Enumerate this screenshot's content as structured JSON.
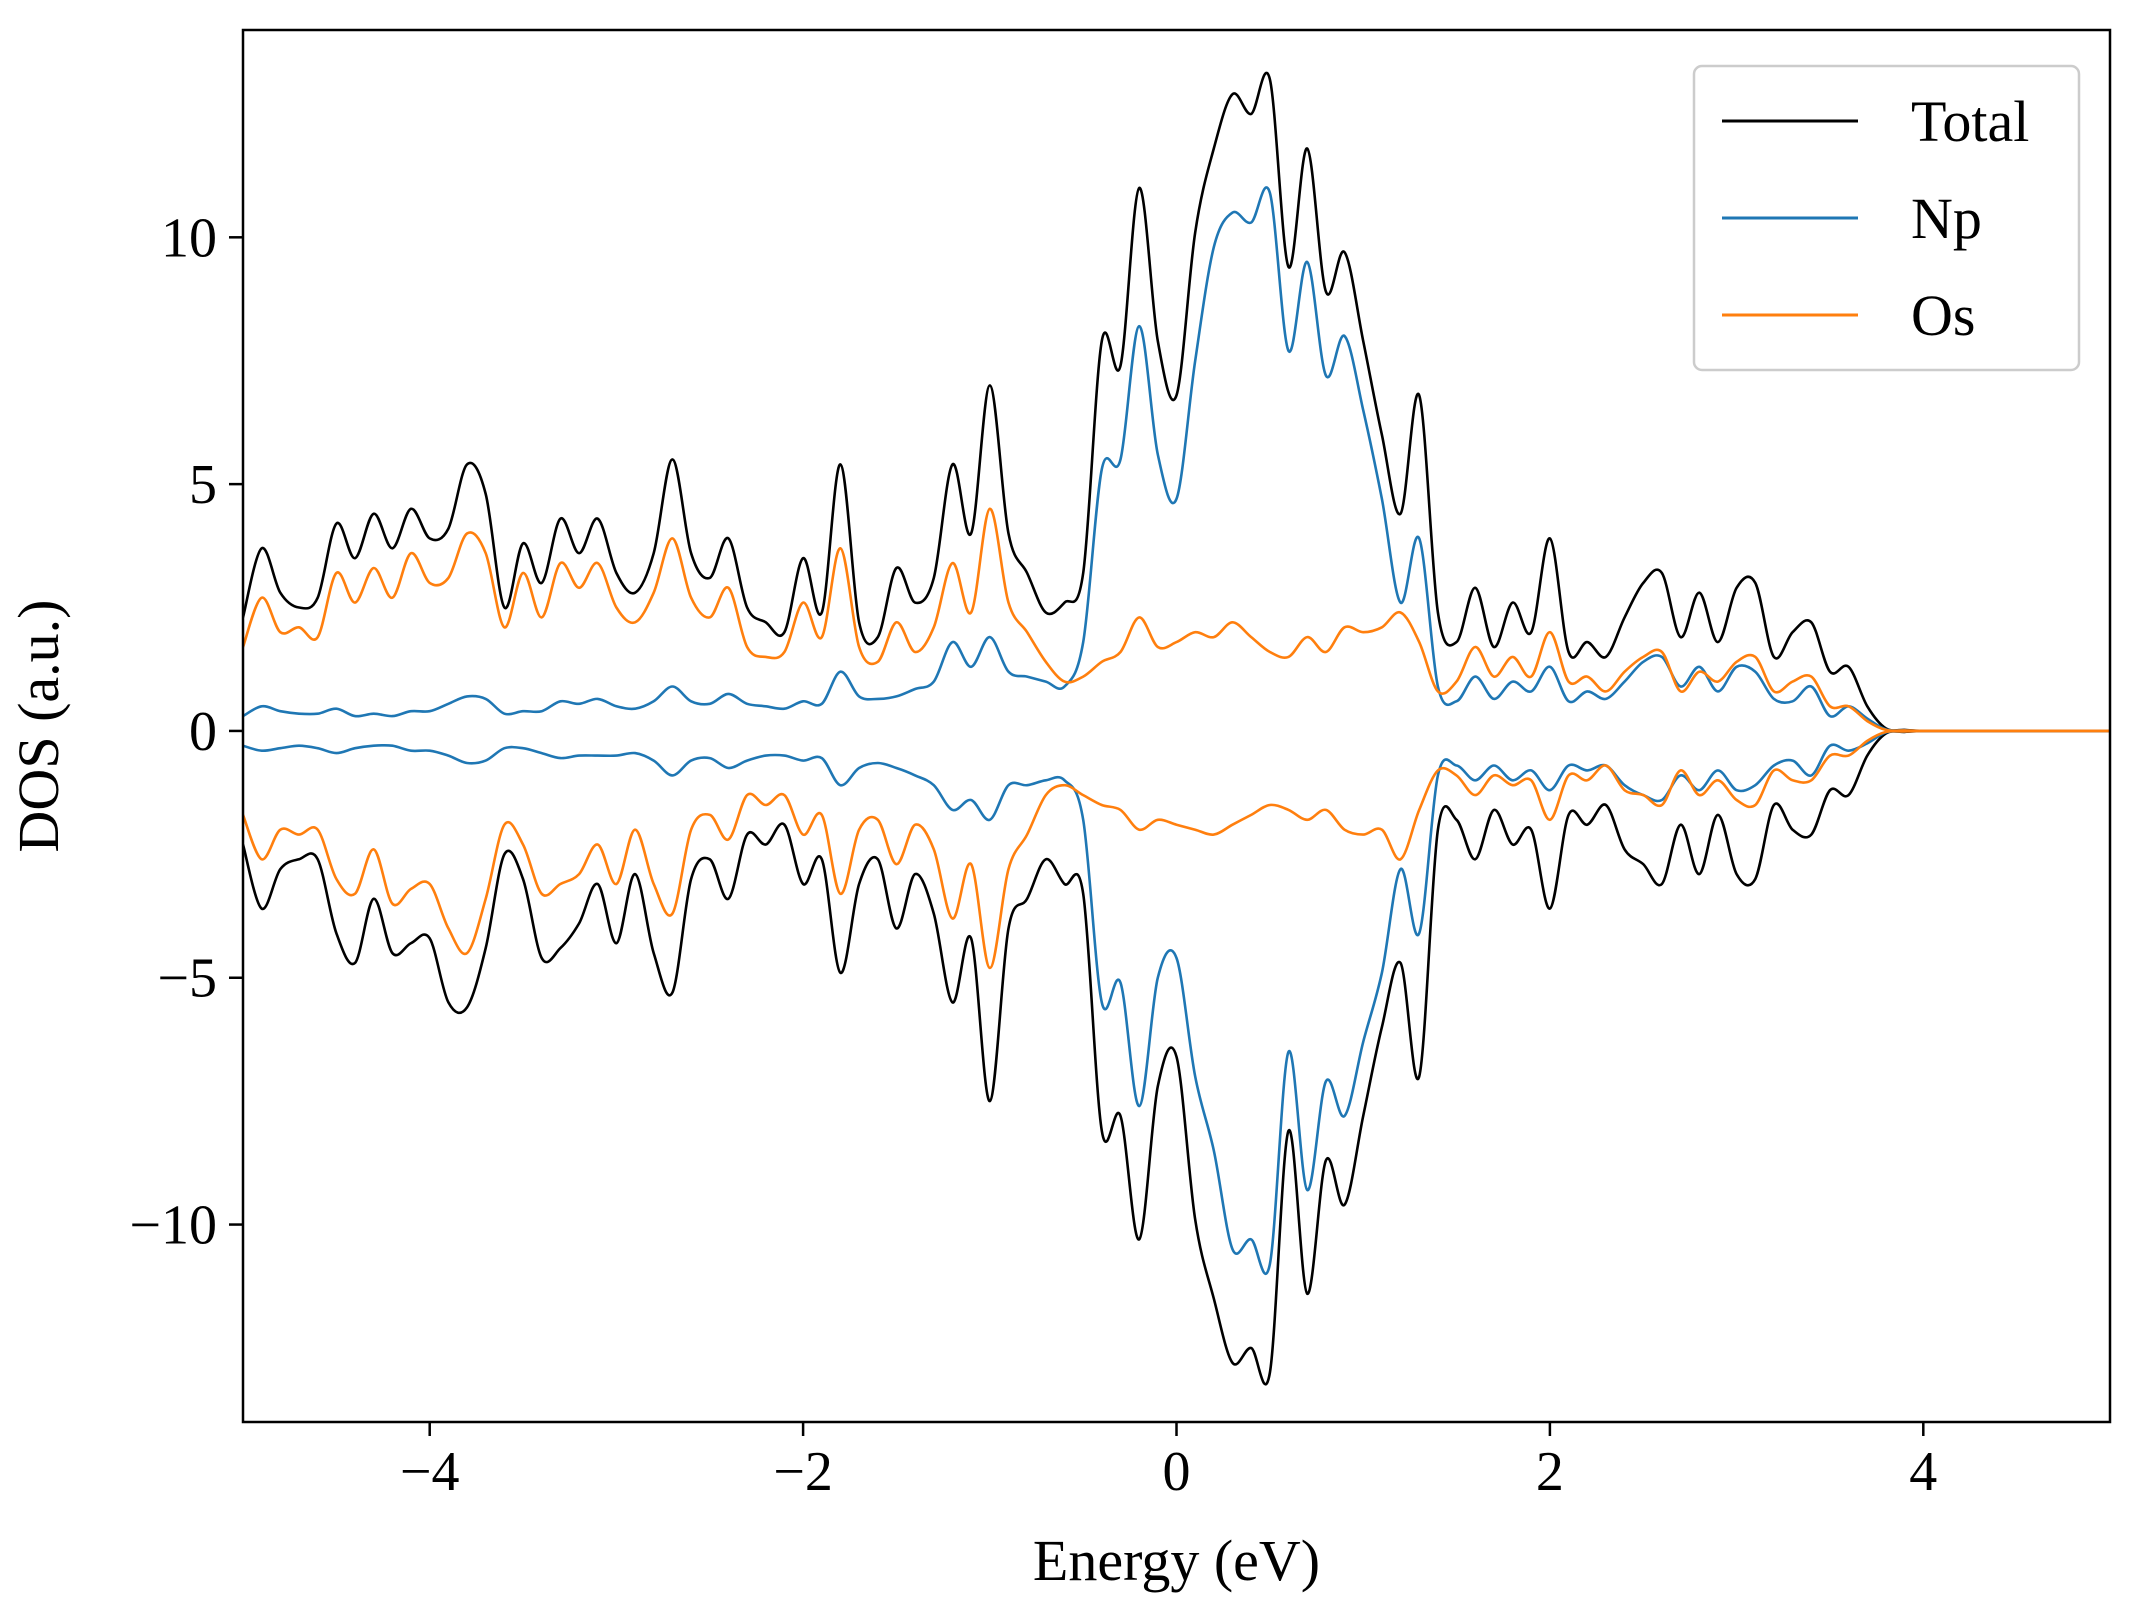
{
  "chart_data": {
    "type": "line",
    "title": "",
    "xlabel": "Energy (eV)",
    "ylabel": "DOS (a.u.)",
    "xlim": [
      -5,
      5
    ],
    "ylim": [
      -14,
      14.2
    ],
    "x_ticks": [
      -4,
      -2,
      0,
      2,
      4
    ],
    "x_tick_labels": [
      "−4",
      "−2",
      "0",
      "2",
      "4"
    ],
    "y_ticks": [
      -10,
      -5,
      0,
      5,
      10
    ],
    "y_tick_labels": [
      "−10",
      "−5",
      "0",
      "5",
      "10"
    ],
    "grid": false,
    "legend_position": "top-right",
    "colors": {
      "Total": "#000000",
      "Np": "#1f77b4",
      "Os": "#ff7f0e"
    },
    "x": [
      -5.0,
      -4.9,
      -4.8,
      -4.7,
      -4.6,
      -4.5,
      -4.4,
      -4.3,
      -4.2,
      -4.1,
      -4.0,
      -3.9,
      -3.8,
      -3.7,
      -3.6,
      -3.5,
      -3.4,
      -3.3,
      -3.2,
      -3.1,
      -3.0,
      -2.9,
      -2.8,
      -2.7,
      -2.6,
      -2.5,
      -2.4,
      -2.3,
      -2.2,
      -2.1,
      -2.0,
      -1.9,
      -1.8,
      -1.7,
      -1.6,
      -1.5,
      -1.4,
      -1.3,
      -1.2,
      -1.1,
      -1.0,
      -0.9,
      -0.8,
      -0.7,
      -0.6,
      -0.5,
      -0.4,
      -0.3,
      -0.2,
      -0.1,
      0.0,
      0.1,
      0.2,
      0.3,
      0.4,
      0.5,
      0.6,
      0.7,
      0.8,
      0.9,
      1.0,
      1.1,
      1.2,
      1.3,
      1.4,
      1.5,
      1.6,
      1.7,
      1.8,
      1.9,
      2.0,
      2.1,
      2.2,
      2.3,
      2.4,
      2.5,
      2.6,
      2.7,
      2.8,
      2.9,
      3.0,
      3.1,
      3.2,
      3.3,
      3.4,
      3.5,
      3.6,
      3.7,
      3.8,
      3.9,
      4.0,
      4.2,
      4.5,
      5.0
    ],
    "series": [
      {
        "name": "Total",
        "spin_up": [
          2.3,
          3.7,
          2.8,
          2.5,
          2.7,
          4.2,
          3.5,
          4.4,
          3.7,
          4.5,
          3.9,
          4.1,
          5.4,
          4.8,
          2.5,
          3.8,
          3.0,
          4.3,
          3.6,
          4.3,
          3.2,
          2.8,
          3.6,
          5.5,
          3.6,
          3.1,
          3.9,
          2.5,
          2.2,
          2.0,
          3.5,
          2.4,
          5.4,
          2.2,
          1.9,
          3.3,
          2.6,
          3.1,
          5.4,
          4.0,
          7.0,
          4.0,
          3.2,
          2.4,
          2.6,
          3.2,
          7.9,
          7.4,
          11.0,
          7.9,
          6.8,
          10.1,
          11.8,
          12.9,
          12.5,
          13.2,
          9.4,
          11.8,
          8.9,
          9.7,
          7.9,
          6.0,
          4.4,
          6.8,
          2.4,
          1.8,
          2.9,
          1.7,
          2.6,
          2.0,
          3.9,
          1.6,
          1.8,
          1.5,
          2.3,
          3.0,
          3.2,
          1.9,
          2.8,
          1.8,
          2.9,
          3.0,
          1.5,
          2.0,
          2.2,
          1.2,
          1.3,
          0.5,
          0.05,
          0.02,
          0.0,
          0.0,
          0.0,
          0.0
        ],
        "spin_down": [
          -2.3,
          -3.6,
          -2.8,
          -2.6,
          -2.6,
          -4.1,
          -4.7,
          -3.4,
          -4.5,
          -4.3,
          -4.2,
          -5.5,
          -5.6,
          -4.4,
          -2.5,
          -3.0,
          -4.6,
          -4.4,
          -3.9,
          -3.1,
          -4.3,
          -2.9,
          -4.5,
          -5.3,
          -3.0,
          -2.6,
          -3.4,
          -2.1,
          -2.3,
          -1.9,
          -3.1,
          -2.6,
          -4.9,
          -3.1,
          -2.6,
          -4.0,
          -2.9,
          -3.7,
          -5.5,
          -4.2,
          -7.5,
          -4.0,
          -3.4,
          -2.6,
          -3.1,
          -3.3,
          -8.1,
          -7.8,
          -10.3,
          -7.2,
          -6.6,
          -9.9,
          -11.5,
          -12.8,
          -12.5,
          -13.0,
          -8.1,
          -11.4,
          -8.7,
          -9.6,
          -7.8,
          -6.0,
          -4.7,
          -7.0,
          -2.0,
          -1.8,
          -2.6,
          -1.6,
          -2.3,
          -2.0,
          -3.6,
          -1.7,
          -1.9,
          -1.5,
          -2.4,
          -2.7,
          -3.1,
          -1.9,
          -2.9,
          -1.7,
          -2.9,
          -3.0,
          -1.5,
          -2.0,
          -2.1,
          -1.2,
          -1.3,
          -0.5,
          -0.05,
          -0.02,
          0.0,
          0.0,
          0.0,
          0.0
        ]
      },
      {
        "name": "Np",
        "spin_up": [
          0.3,
          0.5,
          0.4,
          0.35,
          0.35,
          0.45,
          0.3,
          0.35,
          0.3,
          0.4,
          0.4,
          0.55,
          0.7,
          0.65,
          0.35,
          0.4,
          0.4,
          0.6,
          0.55,
          0.65,
          0.5,
          0.45,
          0.6,
          0.9,
          0.6,
          0.55,
          0.75,
          0.55,
          0.5,
          0.45,
          0.6,
          0.55,
          1.2,
          0.7,
          0.65,
          0.7,
          0.85,
          1.0,
          1.8,
          1.3,
          1.9,
          1.2,
          1.1,
          1.0,
          0.9,
          1.8,
          5.3,
          5.5,
          8.2,
          5.6,
          4.7,
          7.5,
          9.8,
          10.5,
          10.3,
          10.9,
          7.7,
          9.5,
          7.2,
          8.0,
          6.5,
          4.7,
          2.6,
          3.9,
          0.9,
          0.6,
          1.1,
          0.65,
          1.0,
          0.8,
          1.3,
          0.6,
          0.8,
          0.65,
          1.0,
          1.4,
          1.5,
          0.9,
          1.3,
          0.8,
          1.3,
          1.2,
          0.65,
          0.6,
          0.9,
          0.3,
          0.5,
          0.25,
          0.03,
          0.01,
          0.0,
          0.0,
          0.0,
          0.0
        ],
        "spin_down": [
          -0.3,
          -0.4,
          -0.35,
          -0.3,
          -0.35,
          -0.45,
          -0.35,
          -0.3,
          -0.3,
          -0.4,
          -0.4,
          -0.5,
          -0.65,
          -0.6,
          -0.35,
          -0.35,
          -0.45,
          -0.55,
          -0.5,
          -0.5,
          -0.5,
          -0.45,
          -0.6,
          -0.9,
          -0.6,
          -0.55,
          -0.75,
          -0.6,
          -0.5,
          -0.5,
          -0.6,
          -0.55,
          -1.1,
          -0.75,
          -0.65,
          -0.75,
          -0.9,
          -1.1,
          -1.6,
          -1.4,
          -1.8,
          -1.1,
          -1.1,
          -1.0,
          -1.0,
          -1.8,
          -5.5,
          -5.1,
          -7.6,
          -5.0,
          -4.6,
          -7.0,
          -8.5,
          -10.5,
          -10.3,
          -10.8,
          -6.5,
          -9.3,
          -7.1,
          -7.8,
          -6.3,
          -4.9,
          -2.8,
          -4.1,
          -0.9,
          -0.7,
          -1.0,
          -0.7,
          -1.0,
          -0.8,
          -1.2,
          -0.7,
          -0.8,
          -0.7,
          -1.1,
          -1.3,
          -1.4,
          -0.9,
          -1.2,
          -0.8,
          -1.2,
          -1.1,
          -0.7,
          -0.6,
          -0.9,
          -0.3,
          -0.4,
          -0.25,
          -0.03,
          -0.01,
          0.0,
          0.0,
          0.0,
          0.0
        ]
      },
      {
        "name": "Os",
        "spin_up": [
          1.7,
          2.7,
          2.0,
          2.1,
          1.9,
          3.2,
          2.6,
          3.3,
          2.7,
          3.6,
          3.0,
          3.1,
          4.0,
          3.6,
          2.1,
          3.2,
          2.3,
          3.4,
          2.9,
          3.4,
          2.5,
          2.2,
          2.8,
          3.9,
          2.7,
          2.3,
          2.9,
          1.7,
          1.5,
          1.6,
          2.6,
          1.9,
          3.7,
          1.7,
          1.4,
          2.2,
          1.6,
          2.1,
          3.4,
          2.4,
          4.5,
          2.6,
          2.0,
          1.4,
          1.0,
          1.1,
          1.4,
          1.6,
          2.3,
          1.7,
          1.8,
          2.0,
          1.9,
          2.2,
          1.9,
          1.6,
          1.5,
          1.9,
          1.6,
          2.1,
          2.0,
          2.1,
          2.4,
          1.8,
          0.8,
          1.0,
          1.7,
          1.1,
          1.5,
          1.1,
          2.0,
          1.0,
          1.1,
          0.8,
          1.2,
          1.5,
          1.6,
          0.8,
          1.2,
          1.0,
          1.4,
          1.5,
          0.8,
          1.0,
          1.1,
          0.5,
          0.5,
          0.2,
          0.02,
          0.01,
          0.0,
          0.0,
          0.0,
          0.0
        ],
        "spin_down": [
          -1.7,
          -2.6,
          -2.0,
          -2.1,
          -2.0,
          -3.0,
          -3.3,
          -2.4,
          -3.5,
          -3.2,
          -3.1,
          -4.0,
          -4.5,
          -3.4,
          -1.9,
          -2.3,
          -3.3,
          -3.1,
          -2.9,
          -2.3,
          -3.1,
          -2.0,
          -3.1,
          -3.7,
          -2.0,
          -1.7,
          -2.2,
          -1.3,
          -1.5,
          -1.3,
          -2.1,
          -1.7,
          -3.3,
          -2.0,
          -1.8,
          -2.7,
          -1.9,
          -2.4,
          -3.8,
          -2.7,
          -4.8,
          -2.8,
          -2.1,
          -1.3,
          -1.1,
          -1.3,
          -1.5,
          -1.6,
          -2.0,
          -1.8,
          -1.9,
          -2.0,
          -2.1,
          -1.9,
          -1.7,
          -1.5,
          -1.6,
          -1.8,
          -1.6,
          -2.0,
          -2.1,
          -2.0,
          -2.6,
          -1.6,
          -0.8,
          -0.9,
          -1.3,
          -0.9,
          -1.1,
          -1.0,
          -1.8,
          -0.9,
          -1.0,
          -0.7,
          -1.2,
          -1.3,
          -1.5,
          -0.8,
          -1.3,
          -1.0,
          -1.4,
          -1.5,
          -0.8,
          -1.0,
          -1.0,
          -0.5,
          -0.5,
          -0.2,
          -0.02,
          -0.01,
          0.0,
          0.0,
          0.0,
          0.0
        ]
      }
    ]
  }
}
